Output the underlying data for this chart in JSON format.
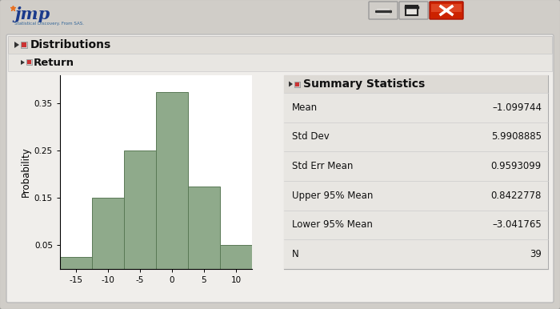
{
  "title": "Distributions",
  "section": "Return",
  "stats_title": "Summary Statistics",
  "stats": [
    {
      "label": "Mean",
      "value": "–1.099744"
    },
    {
      "label": "Std Dev",
      "value": "5.9908885"
    },
    {
      "label": "Std Err Mean",
      "value": "0.9593099"
    },
    {
      "label": "Upper 95% Mean",
      "value": "0.8422778"
    },
    {
      "label": "Lower 95% Mean",
      "value": "–3.041765"
    },
    {
      "label": "N",
      "value": "39"
    }
  ],
  "hist_bins": [
    -17.5,
    -12.5,
    -7.5,
    -2.5,
    2.5,
    7.5,
    12.5
  ],
  "hist_heights": [
    0.025,
    0.15,
    0.25,
    0.375,
    0.175,
    0.05
  ],
  "hist_color": "#8faa8b",
  "hist_edge_color": "#5a7a56",
  "ylabel": "Probability",
  "xticks": [
    -15,
    -10,
    -5,
    0,
    5,
    10
  ],
  "yticks": [
    0.05,
    0.15,
    0.25,
    0.35
  ],
  "bg_window": "#d0cdc8",
  "bg_inner": "#f0eeeb",
  "bg_hist": "#ffffff",
  "bg_stats": "#e8e6e2",
  "bg_stats_hdr": "#dddad5",
  "close_btn_color": "#cc2200",
  "close_btn_highlight": "#dd4422"
}
